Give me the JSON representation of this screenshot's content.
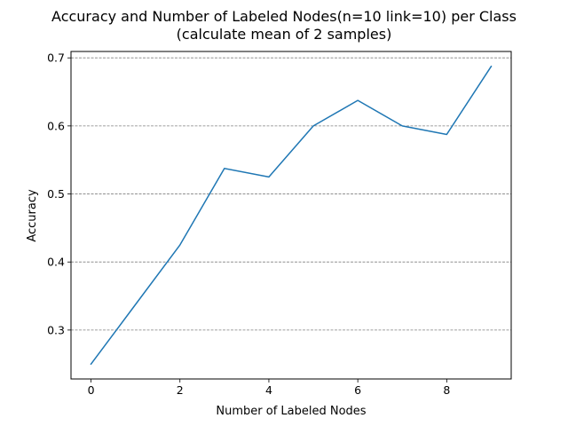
{
  "chart_data": {
    "type": "line",
    "title_line1": "Accuracy and Number of Labeled Nodes(n=10 link=10) per Class",
    "title_line2": "(calculate mean of 2 samples)",
    "xlabel": "Number of Labeled Nodes",
    "ylabel": "Accuracy",
    "x": [
      0,
      1,
      2,
      3,
      4,
      5,
      6,
      7,
      8,
      9
    ],
    "series": [
      {
        "values": [
          0.25,
          0.3375,
          0.425,
          0.5375,
          0.525,
          0.6,
          0.6375,
          0.6,
          0.5875,
          0.6875
        ],
        "color": "#1f77b4"
      }
    ],
    "xlim": [
      -0.45,
      9.45
    ],
    "ylim": [
      0.2281,
      0.7094
    ],
    "xticks": [
      0,
      2,
      4,
      6,
      8
    ],
    "xtick_labels": [
      "0",
      "2",
      "4",
      "6",
      "8"
    ],
    "yticks": [
      0.3,
      0.4,
      0.5,
      0.6,
      0.7
    ],
    "ytick_labels": [
      "0.3",
      "0.4",
      "0.5",
      "0.6",
      "0.7"
    ],
    "grid": "y-dashed",
    "grid_color": "#808080",
    "legend": "none"
  }
}
